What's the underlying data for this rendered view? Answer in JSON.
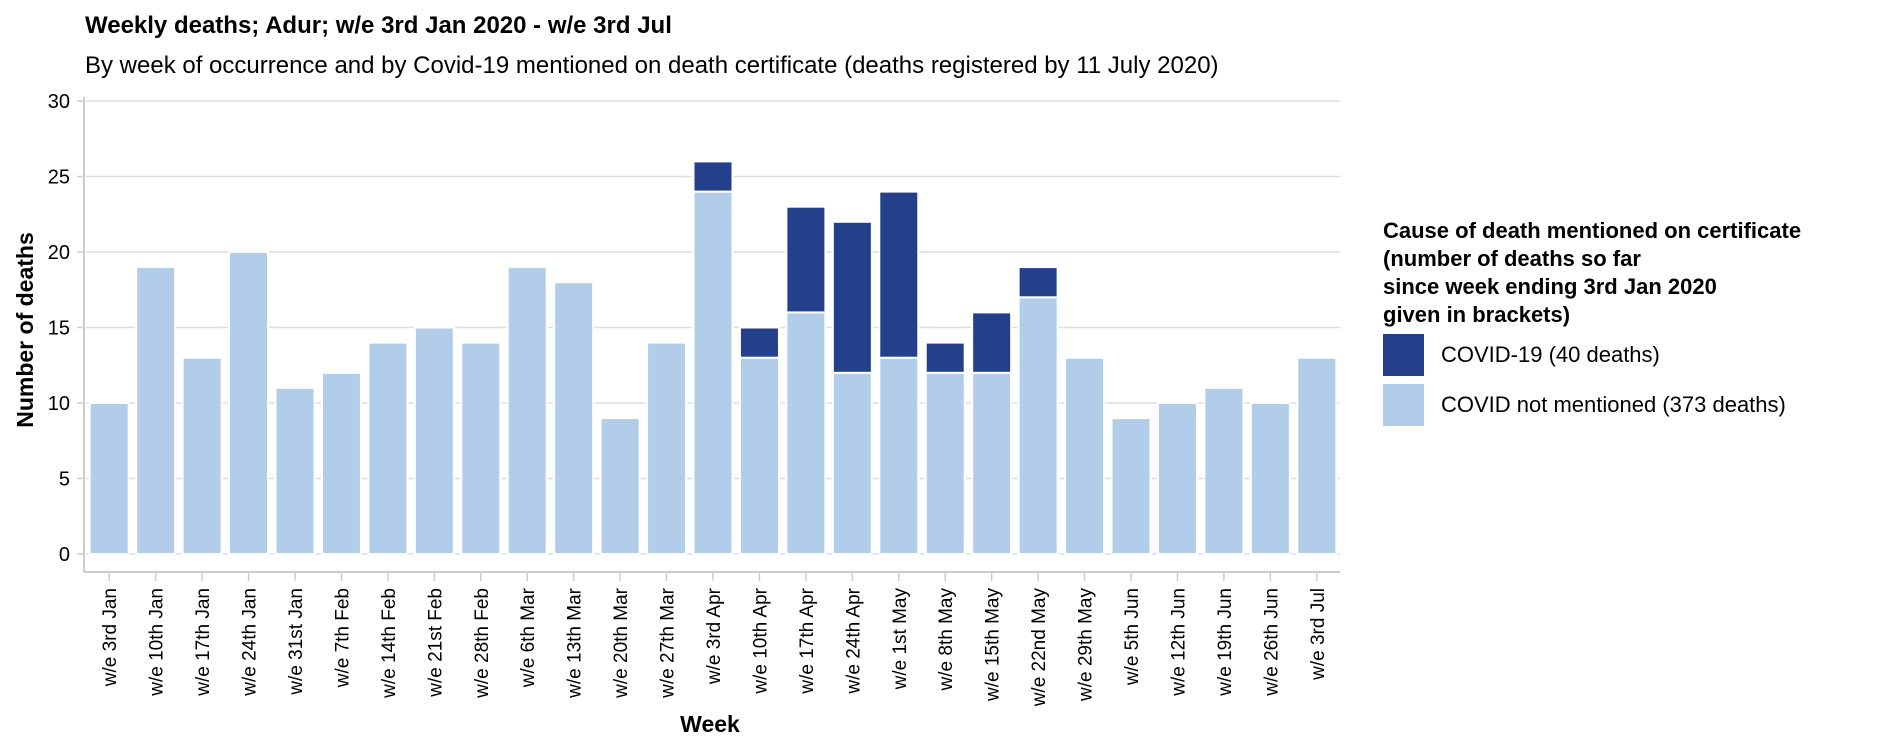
{
  "title": "Weekly deaths; Adur; w/e 3rd Jan 2020 - w/e 3rd Jul",
  "subtitle": "By week of occurrence and by Covid-19 mentioned on death certificate (deaths registered by 11 July 2020)",
  "legend": {
    "title": "Cause of death mentioned on certificate\n(number of deaths so far\nsince week ending 3rd Jan 2020\ngiven in brackets)",
    "items": [
      {
        "label": "COVID-19 (40 deaths)",
        "color": "#24408a"
      },
      {
        "label": "COVID not mentioned (373 deaths)",
        "color": "#b1cdea"
      }
    ]
  },
  "chart_data": {
    "type": "bar",
    "stacked": true,
    "categories": [
      "w/e 3rd Jan",
      "w/e 10th Jan",
      "w/e 17th Jan",
      "w/e 24th Jan",
      "w/e 31st Jan",
      "w/e 7th Feb",
      "w/e 14th Feb",
      "w/e 21st Feb",
      "w/e 28th Feb",
      "w/e 6th Mar",
      "w/e 13th Mar",
      "w/e 20th Mar",
      "w/e 27th Mar",
      "w/e 3rd Apr",
      "w/e 10th Apr",
      "w/e 17th Apr",
      "w/e 24th Apr",
      "w/e 1st May",
      "w/e 8th May",
      "w/e 15th May",
      "w/e 22nd May",
      "w/e 29th May",
      "w/e 5th Jun",
      "w/e 12th Jun",
      "w/e 19th Jun",
      "w/e 26th Jun",
      "w/e 3rd Jul"
    ],
    "series": [
      {
        "name": "COVID not mentioned (373 deaths)",
        "color": "#b1cdea",
        "values": [
          10,
          19,
          13,
          20,
          11,
          12,
          14,
          15,
          14,
          19,
          18,
          9,
          14,
          24,
          13,
          16,
          12,
          13,
          12,
          12,
          17,
          13,
          9,
          10,
          11,
          10,
          13
        ]
      },
      {
        "name": "COVID-19 (40 deaths)",
        "color": "#24408a",
        "values": [
          0,
          0,
          0,
          0,
          0,
          0,
          0,
          0,
          0,
          0,
          0,
          0,
          0,
          2,
          2,
          7,
          10,
          11,
          2,
          4,
          2,
          0,
          0,
          0,
          0,
          0,
          0
        ]
      }
    ],
    "xlabel": "Week",
    "ylabel": "Number of deaths",
    "ylim": [
      0,
      30
    ],
    "yticks": [
      0,
      5,
      10,
      15,
      20,
      25,
      30
    ],
    "grid": true,
    "legend_position": "right"
  }
}
